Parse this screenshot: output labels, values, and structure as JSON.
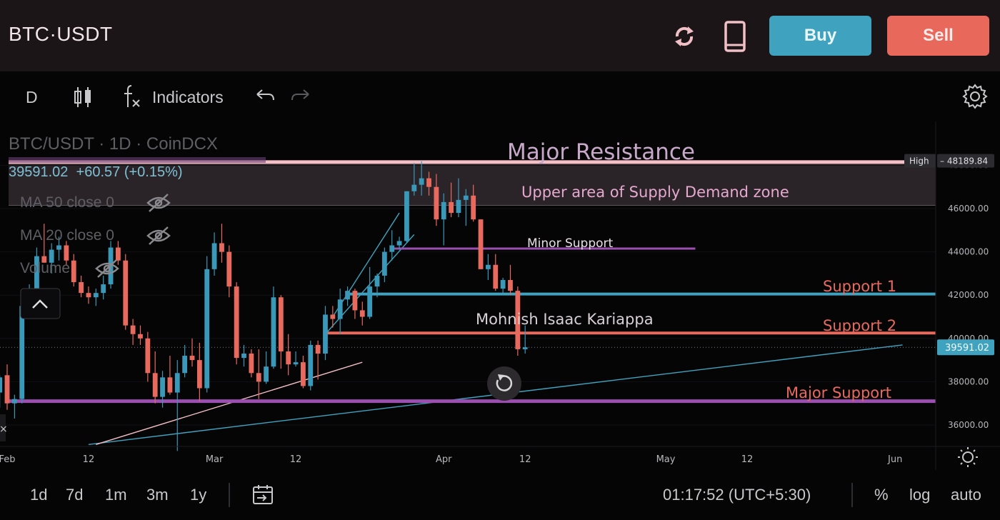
{
  "header": {
    "pair": "BTC·USDT",
    "buy_label": "Buy",
    "sell_label": "Sell",
    "icons": [
      "refresh-icon",
      "mobile-icon"
    ]
  },
  "toolbar": {
    "interval": "D",
    "indicators_label": "Indicators",
    "icons": [
      "candle-style-icon",
      "fx-icon",
      "undo-icon",
      "redo-icon",
      "settings-icon"
    ]
  },
  "legend": {
    "symbol": "BTC/USDT · 1D · CoinDCX",
    "price_line": "39591.02 +60.57 (+0.15%)",
    "price": "39591.02",
    "change": "+60.57 (+0.15%)",
    "ma50": "MA 50 close 0",
    "ma20": "MA 20 close 0",
    "volume": "Volume"
  },
  "bottom": {
    "ranges": [
      "1d",
      "7d",
      "1m",
      "3m",
      "1y"
    ],
    "time": "01:17:52 (UTC+5:30)",
    "percent": "%",
    "log": "log",
    "auto": "auto"
  },
  "colors": {
    "up": "#3a98b9",
    "down": "#e86a5e",
    "support": "#3fa3bf",
    "major": "#9b4fb0",
    "resistance": "#f4c0c6"
  },
  "chart_data": {
    "type": "candlestick",
    "x_ticks": [
      {
        "label": "Feb",
        "date": "2022-02-01"
      },
      {
        "label": "12",
        "date": "2022-02-12"
      },
      {
        "label": "Mar",
        "date": "2022-03-01"
      },
      {
        "label": "12",
        "date": "2022-03-12"
      },
      {
        "label": "Apr",
        "date": "2022-04-01"
      },
      {
        "label": "12",
        "date": "2022-04-12"
      },
      {
        "label": "May",
        "date": "2022-05-01"
      },
      {
        "label": "12",
        "date": "2022-05-12"
      },
      {
        "label": "Jun",
        "date": "2022-06-01"
      }
    ],
    "y_ticks": [
      36000,
      38000,
      40000,
      42000,
      44000,
      46000,
      48000
    ],
    "y_tick_labels": [
      "36000.00",
      "38000.00",
      "40000.00",
      "42000.00",
      "44000.00",
      "46000.00",
      "48000.00"
    ],
    "ylim": [
      35000,
      50000
    ],
    "last_price_label": "39591.02",
    "high_label": "High",
    "high_value_label": "48189.84",
    "high": 48189.84,
    "last_price": 39591.02,
    "candles": [
      {
        "date": "2022-01-31",
        "o": 37500,
        "h": 38300,
        "l": 36800,
        "c": 38200
      },
      {
        "date": "2022-02-01",
        "o": 38300,
        "h": 38800,
        "l": 36700,
        "c": 37000
      },
      {
        "date": "2022-02-02",
        "o": 37000,
        "h": 37400,
        "l": 36300,
        "c": 37200
      },
      {
        "date": "2022-02-03",
        "o": 37200,
        "h": 41800,
        "l": 37000,
        "c": 41500
      },
      {
        "date": "2022-02-04",
        "o": 41500,
        "h": 42500,
        "l": 41200,
        "c": 42200
      },
      {
        "date": "2022-02-05",
        "o": 42200,
        "h": 44200,
        "l": 42000,
        "c": 43800
      },
      {
        "date": "2022-02-06",
        "o": 43800,
        "h": 45300,
        "l": 43500,
        "c": 43500
      },
      {
        "date": "2022-02-07",
        "o": 43500,
        "h": 44400,
        "l": 43000,
        "c": 44100
      },
      {
        "date": "2022-02-08",
        "o": 44100,
        "h": 44700,
        "l": 43600,
        "c": 44300
      },
      {
        "date": "2022-02-09",
        "o": 44300,
        "h": 44500,
        "l": 43400,
        "c": 43600
      },
      {
        "date": "2022-02-10",
        "o": 43600,
        "h": 43900,
        "l": 42400,
        "c": 42600
      },
      {
        "date": "2022-02-11",
        "o": 42600,
        "h": 42900,
        "l": 41900,
        "c": 42100
      },
      {
        "date": "2022-02-12",
        "o": 42100,
        "h": 42400,
        "l": 41600,
        "c": 41900
      },
      {
        "date": "2022-02-13",
        "o": 41900,
        "h": 42300,
        "l": 41500,
        "c": 42100
      },
      {
        "date": "2022-02-14",
        "o": 42100,
        "h": 42900,
        "l": 41800,
        "c": 42500
      },
      {
        "date": "2022-02-15",
        "o": 42500,
        "h": 44500,
        "l": 42300,
        "c": 44200
      },
      {
        "date": "2022-02-16",
        "o": 44200,
        "h": 44500,
        "l": 43400,
        "c": 43600
      },
      {
        "date": "2022-02-17",
        "o": 43600,
        "h": 43900,
        "l": 40400,
        "c": 40600
      },
      {
        "date": "2022-02-18",
        "o": 40600,
        "h": 40900,
        "l": 39700,
        "c": 40200
      },
      {
        "date": "2022-02-19",
        "o": 40200,
        "h": 40600,
        "l": 39700,
        "c": 40000
      },
      {
        "date": "2022-02-20",
        "o": 40000,
        "h": 40300,
        "l": 38000,
        "c": 38400
      },
      {
        "date": "2022-02-21",
        "o": 38400,
        "h": 39400,
        "l": 37000,
        "c": 37300
      },
      {
        "date": "2022-02-22",
        "o": 37300,
        "h": 38500,
        "l": 36800,
        "c": 38200
      },
      {
        "date": "2022-02-23",
        "o": 38200,
        "h": 39200,
        "l": 37400,
        "c": 37500
      },
      {
        "date": "2022-02-24",
        "o": 37500,
        "h": 39000,
        "l": 34800,
        "c": 38400
      },
      {
        "date": "2022-02-25",
        "o": 38400,
        "h": 39700,
        "l": 38200,
        "c": 39200
      },
      {
        "date": "2022-02-26",
        "o": 39200,
        "h": 40000,
        "l": 38700,
        "c": 39000
      },
      {
        "date": "2022-02-27",
        "o": 39000,
        "h": 39800,
        "l": 37100,
        "c": 37700
      },
      {
        "date": "2022-02-28",
        "o": 37700,
        "h": 43800,
        "l": 37500,
        "c": 43200
      },
      {
        "date": "2022-03-01",
        "o": 43200,
        "h": 44900,
        "l": 42900,
        "c": 44400
      },
      {
        "date": "2022-03-02",
        "o": 44400,
        "h": 45300,
        "l": 43500,
        "c": 44000
      },
      {
        "date": "2022-03-03",
        "o": 44000,
        "h": 44300,
        "l": 41900,
        "c": 42400
      },
      {
        "date": "2022-03-04",
        "o": 42400,
        "h": 42600,
        "l": 38800,
        "c": 39100
      },
      {
        "date": "2022-03-05",
        "o": 39100,
        "h": 39700,
        "l": 38700,
        "c": 39300
      },
      {
        "date": "2022-03-06",
        "o": 39300,
        "h": 39500,
        "l": 38200,
        "c": 38400
      },
      {
        "date": "2022-03-07",
        "o": 38400,
        "h": 39500,
        "l": 37200,
        "c": 38000
      },
      {
        "date": "2022-03-08",
        "o": 38000,
        "h": 39400,
        "l": 37900,
        "c": 38700
      },
      {
        "date": "2022-03-09",
        "o": 38700,
        "h": 42400,
        "l": 38600,
        "c": 41900
      },
      {
        "date": "2022-03-10",
        "o": 41900,
        "h": 42000,
        "l": 38600,
        "c": 39400
      },
      {
        "date": "2022-03-11",
        "o": 39400,
        "h": 40200,
        "l": 38300,
        "c": 38800
      },
      {
        "date": "2022-03-12",
        "o": 38800,
        "h": 39400,
        "l": 38700,
        "c": 38900
      },
      {
        "date": "2022-03-13",
        "o": 38900,
        "h": 39200,
        "l": 37700,
        "c": 37800
      },
      {
        "date": "2022-03-14",
        "o": 37800,
        "h": 39900,
        "l": 37600,
        "c": 39700
      },
      {
        "date": "2022-03-15",
        "o": 39700,
        "h": 39900,
        "l": 38100,
        "c": 39300
      },
      {
        "date": "2022-03-16",
        "o": 39300,
        "h": 41500,
        "l": 39000,
        "c": 41100
      },
      {
        "date": "2022-03-17",
        "o": 41100,
        "h": 41500,
        "l": 40500,
        "c": 40900
      },
      {
        "date": "2022-03-18",
        "o": 40900,
        "h": 42300,
        "l": 40200,
        "c": 41800
      },
      {
        "date": "2022-03-19",
        "o": 41800,
        "h": 42400,
        "l": 41500,
        "c": 42200
      },
      {
        "date": "2022-03-20",
        "o": 42200,
        "h": 42300,
        "l": 40900,
        "c": 41300
      },
      {
        "date": "2022-03-21",
        "o": 41300,
        "h": 41700,
        "l": 40600,
        "c": 41000
      },
      {
        "date": "2022-03-22",
        "o": 41000,
        "h": 43300,
        "l": 40900,
        "c": 42400
      },
      {
        "date": "2022-03-23",
        "o": 42400,
        "h": 43000,
        "l": 41900,
        "c": 42900
      },
      {
        "date": "2022-03-24",
        "o": 42900,
        "h": 44200,
        "l": 42600,
        "c": 44000
      },
      {
        "date": "2022-03-25",
        "o": 44000,
        "h": 45000,
        "l": 43600,
        "c": 44300
      },
      {
        "date": "2022-03-26",
        "o": 44300,
        "h": 44700,
        "l": 44100,
        "c": 44500
      },
      {
        "date": "2022-03-27",
        "o": 44500,
        "h": 46800,
        "l": 44400,
        "c": 46800
      },
      {
        "date": "2022-03-28",
        "o": 46800,
        "h": 48100,
        "l": 46600,
        "c": 47100
      },
      {
        "date": "2022-03-29",
        "o": 47100,
        "h": 48190,
        "l": 46600,
        "c": 47400
      },
      {
        "date": "2022-03-30",
        "o": 47400,
        "h": 47700,
        "l": 46600,
        "c": 47000
      },
      {
        "date": "2022-03-31",
        "o": 47000,
        "h": 47600,
        "l": 45200,
        "c": 45500
      },
      {
        "date": "2022-04-01",
        "o": 45500,
        "h": 46700,
        "l": 44300,
        "c": 46300
      },
      {
        "date": "2022-04-02",
        "o": 46300,
        "h": 47200,
        "l": 45600,
        "c": 45800
      },
      {
        "date": "2022-04-03",
        "o": 45800,
        "h": 47400,
        "l": 45600,
        "c": 46400
      },
      {
        "date": "2022-04-04",
        "o": 46400,
        "h": 46900,
        "l": 45200,
        "c": 46600
      },
      {
        "date": "2022-04-05",
        "o": 46600,
        "h": 47100,
        "l": 45400,
        "c": 45500
      },
      {
        "date": "2022-04-06",
        "o": 45500,
        "h": 45500,
        "l": 43200,
        "c": 43200
      },
      {
        "date": "2022-04-07",
        "o": 43200,
        "h": 43900,
        "l": 42700,
        "c": 43400
      },
      {
        "date": "2022-04-08",
        "o": 43400,
        "h": 43900,
        "l": 42200,
        "c": 42300
      },
      {
        "date": "2022-04-09",
        "o": 42300,
        "h": 42800,
        "l": 42100,
        "c": 42700
      },
      {
        "date": "2022-04-10",
        "o": 42700,
        "h": 43400,
        "l": 42000,
        "c": 42200
      },
      {
        "date": "2022-04-11",
        "o": 42200,
        "h": 42400,
        "l": 39200,
        "c": 39500
      },
      {
        "date": "2022-04-12",
        "o": 39500,
        "h": 40600,
        "l": 39300,
        "c": 39591
      }
    ],
    "annotations": {
      "texts": [
        "Major Resistance",
        "Upper area of Supply Demand zone",
        "Minor Support",
        "Support 1",
        "Support 2",
        "Mohnish Isaac Kariappa",
        "Major Support"
      ],
      "levels": [
        {
          "name": "Major Resistance",
          "price": 48150
        },
        {
          "name": "Minor Support",
          "price": 44150,
          "from": "2022-03-25",
          "to": "2022-05-05"
        },
        {
          "name": "Support 1",
          "price": 42050,
          "from": "2022-03-19"
        },
        {
          "name": "Support 2",
          "price": 40250,
          "from": "2022-03-16"
        },
        {
          "name": "Major Support",
          "price": 37100
        },
        {
          "name": "Supply Demand zone top",
          "price": 48150
        },
        {
          "name": "Supply Demand zone bottom",
          "price": 46150
        }
      ],
      "trendlines": [
        {
          "from": {
            "date": "2022-02-12",
            "price": 35100
          },
          "to": {
            "date": "2022-06-02",
            "price": 39700
          }
        },
        {
          "from": {
            "date": "2022-02-13",
            "price": 35100
          },
          "to": {
            "date": "2022-03-21",
            "price": 38900
          }
        },
        {
          "from": {
            "date": "2022-03-16",
            "price": 40200
          },
          "to": {
            "date": "2022-03-28",
            "price": 44800
          }
        },
        {
          "from": {
            "date": "2022-03-17",
            "price": 41000
          },
          "to": {
            "date": "2022-03-26",
            "price": 45800
          }
        }
      ]
    }
  }
}
